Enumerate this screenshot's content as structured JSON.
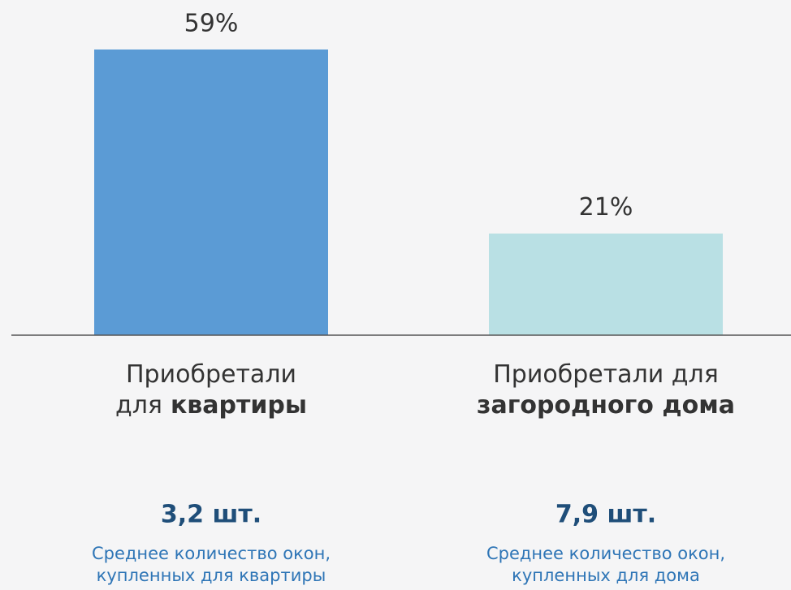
{
  "chart_data": {
    "type": "bar",
    "categories": [
      {
        "lines": [
          [
            {
              "text": "Приобретали"
            }
          ],
          [
            {
              "text": "для"
            },
            {
              "text": "квартиры",
              "bold": true
            }
          ]
        ]
      },
      {
        "lines": [
          [
            {
              "text": "Приобретали для"
            }
          ],
          [
            {
              "text": "загородного дома",
              "bold": true
            }
          ]
        ]
      }
    ],
    "values": [
      59,
      21
    ],
    "value_labels": [
      "59%",
      "21%"
    ],
    "colors": [
      "#5b9bd5",
      "#b9e0e4"
    ],
    "annotations": [
      {
        "headline": "3,2 шт.",
        "description": [
          "Среднее количество окон,",
          "купленных для квартиры"
        ]
      },
      {
        "headline": "7,9 шт.",
        "description": [
          "Среднее количество окон,",
          "купленных для дома"
        ]
      }
    ]
  }
}
